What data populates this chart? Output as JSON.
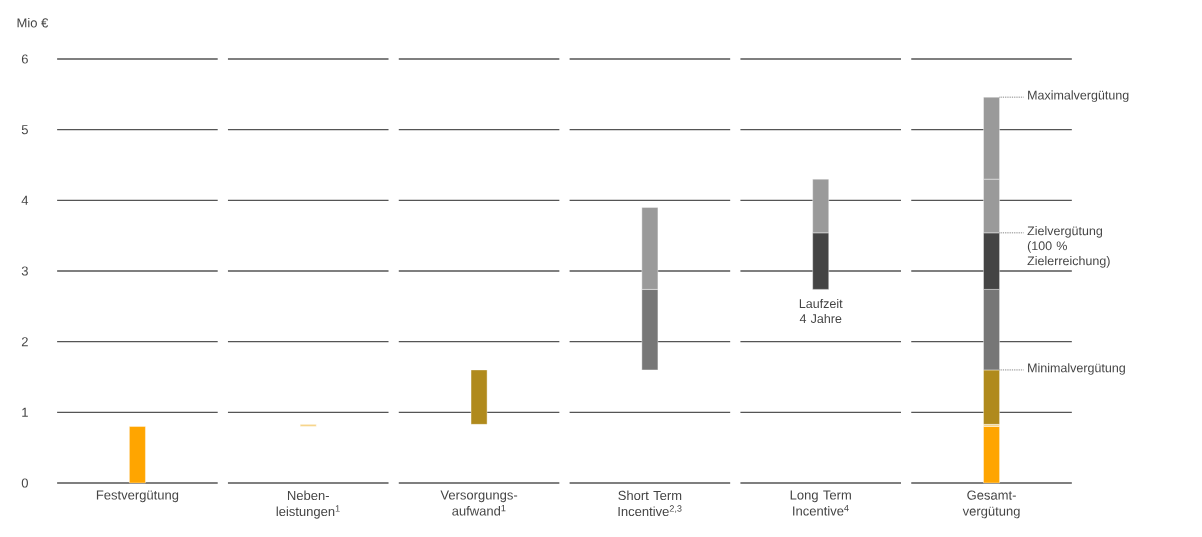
{
  "chart_data": {
    "type": "bar",
    "ylabel": "Mio €",
    "categories": [
      "Festvergütung",
      "Neben-leistungen$^{1}$",
      "Versorgungs-aufwand$^{1}$",
      "Short Term Incentive$^{2,3}$",
      "Long Term Incentive$^{4}$",
      "Gesamt-vergütung"
    ],
    "series": [
      {
        "color": "#ffa500",
        "values": [
          0.8,
          null,
          null,
          null,
          null,
          0.8
        ],
        "base": [
          0,
          null,
          null,
          null,
          null,
          0
        ]
      },
      {
        "color": "#f7d58a",
        "values": [
          null,
          0.03,
          null,
          null,
          null,
          0.03
        ],
        "base": [
          null,
          0.8,
          null,
          null,
          null,
          0.8
        ]
      },
      {
        "color": "#b08a1c",
        "values": [
          null,
          null,
          0.77,
          null,
          null,
          0.77
        ],
        "base": [
          null,
          null,
          0.83,
          null,
          null,
          0.83
        ]
      },
      {
        "color": "#777777",
        "values": [
          null,
          null,
          null,
          1.14,
          null,
          1.14
        ],
        "base": [
          null,
          null,
          null,
          1.6,
          null,
          1.6
        ]
      },
      {
        "color": "#444444",
        "values": [
          null,
          null,
          null,
          null,
          0.8,
          0.8
        ],
        "base": [
          null,
          null,
          null,
          null,
          2.74,
          2.74
        ]
      },
      {
        "color": "#9a9a9a",
        "values": [
          null,
          null,
          null,
          null,
          0.76,
          0.76
        ],
        "base": [
          null,
          null,
          null,
          null,
          3.54,
          3.54
        ]
      },
      {
        "color": "#9a9a9a",
        "values": [
          null,
          null,
          null,
          1.16,
          null,
          1.16
        ],
        "base": [
          null,
          null,
          null,
          2.74,
          null,
          4.3
        ]
      }
    ],
    "ylim": [
      0,
      6
    ],
    "yticks": [
      0,
      1,
      2,
      3,
      4,
      5,
      6
    ],
    "grid": "y",
    "annotations": [
      {
        "text": "Maximalvergütung",
        "x": "Gesamt-vergütung",
        "y": 5.46
      },
      {
        "text": "Zielvergütung (100 % Zielerreichung)",
        "x": "Gesamt-vergütung",
        "y": 3.54
      },
      {
        "text": "Minimalvergütung",
        "x": "Gesamt-vergütung",
        "y": 1.6
      },
      {
        "text": "Laufzeit 4 Jahre",
        "x": "Long Term Incentive$^{4}$",
        "y": 2.74
      }
    ]
  }
}
